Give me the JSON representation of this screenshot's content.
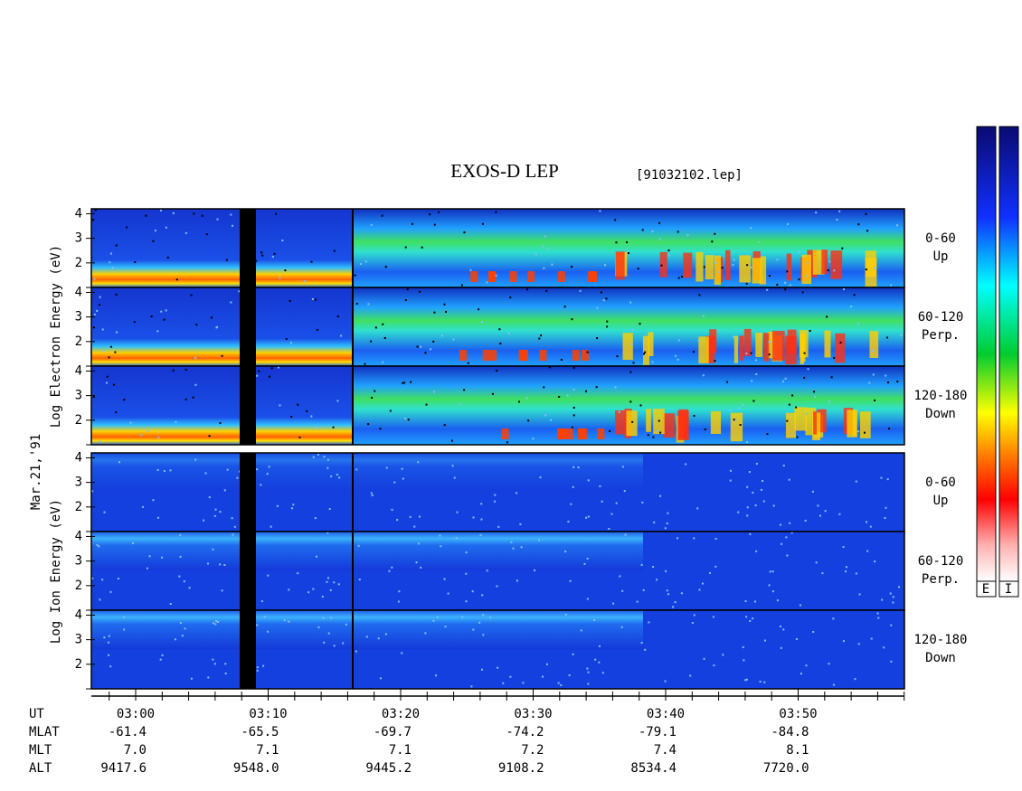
{
  "title": "EXOS-D LEP",
  "file": "[91032102.lep]",
  "date": "Mar.21,'91",
  "electron_label": "Log Electron Energy (eV)",
  "ion_label": "Log Ion Energy (eV)",
  "ylim": [
    1,
    4.2
  ],
  "yticks": [
    2,
    3,
    4
  ],
  "electron_panels": [
    {
      "range": "0-60",
      "dir": "Up"
    },
    {
      "range": "60-120",
      "dir": "Perp."
    },
    {
      "range": "120-180",
      "dir": "Down"
    }
  ],
  "ion_panels": [
    {
      "range": "0-60",
      "dir": "Up"
    },
    {
      "range": "60-120",
      "dir": "Perp."
    },
    {
      "range": "120-180",
      "dir": "Down"
    }
  ],
  "table": {
    "row_labels": [
      "UT",
      "MLAT",
      "MLT",
      "ALT"
    ],
    "rows": [
      [
        "03:00",
        "03:10",
        "03:20",
        "03:30",
        "03:40",
        "03:50"
      ],
      [
        "-61.4",
        "-65.5",
        "-69.7",
        "-74.2",
        "-79.1",
        "-84.8"
      ],
      [
        "7.0",
        "7.1",
        "7.1",
        "7.2",
        "7.4",
        "8.1"
      ],
      [
        "9417.6",
        "9548.0",
        "9445.2",
        "9108.2",
        "8534.4",
        "7720.0"
      ]
    ]
  },
  "colorbar_labels": [
    "E",
    "I"
  ]
}
